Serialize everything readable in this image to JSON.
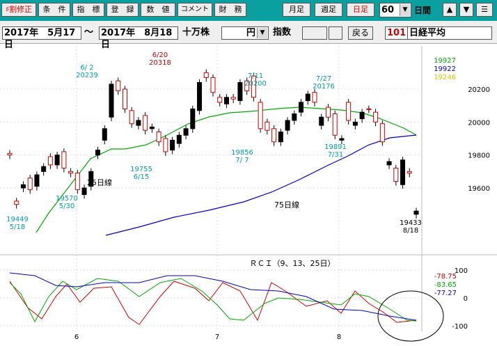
{
  "toolbar": {
    "buttons": [
      "♯割修正",
      "条　件",
      "指　標",
      "登　録",
      "数　値",
      "コメント",
      "財　務"
    ],
    "period_buttons": [
      "月足",
      "週足",
      "日足"
    ],
    "interval_value": "60",
    "interval_unit": "日間"
  },
  "rangebar": {
    "start_date": "2017年　5月17日",
    "tilde": "〜",
    "end_date": "2017年　8月18日",
    "unit": "十万株",
    "currency": "円",
    "index_label": "指数",
    "back_button": "戻る",
    "code": "101",
    "name": "日経平均"
  },
  "legend": {
    "values": [
      "19927",
      "19922",
      "19246"
    ],
    "colors": [
      "#00aa00",
      "#0000cc",
      "#cccc00"
    ]
  },
  "chart_data": {
    "type": "candlestick",
    "y_ticks": [
      "20200",
      "20000",
      "19800",
      "19600"
    ],
    "ylim": [
      19350,
      20450
    ],
    "x_labels": [
      "6",
      "7",
      "8"
    ],
    "ma_labels": [
      "25日線",
      "75日線"
    ],
    "annotations": [
      {
        "date": "6/ 2",
        "value": "20239"
      },
      {
        "date": "6/20",
        "value": "20318"
      },
      {
        "date": "7/11",
        "value": "20200"
      },
      {
        "date": "7/27",
        "value": "20176"
      },
      {
        "date": "5/18",
        "value": "19449"
      },
      {
        "date": "5/30",
        "value": "19570"
      },
      {
        "date": "6/15",
        "value": "19755"
      },
      {
        "date": "7/ 7",
        "value": "19856"
      },
      {
        "date": "7/31",
        "value": "19891"
      },
      {
        "date": "8/18",
        "value": "19433"
      }
    ],
    "rci": {
      "title": "ＲＣＩ（9、13、25日）",
      "y_ticks": [
        "100",
        "0",
        "-100"
      ],
      "values": [
        "-78.75",
        "-83.65",
        "-77.27"
      ],
      "value_colors": [
        "#cc0000",
        "#00aa00",
        "#0000cc"
      ]
    }
  }
}
